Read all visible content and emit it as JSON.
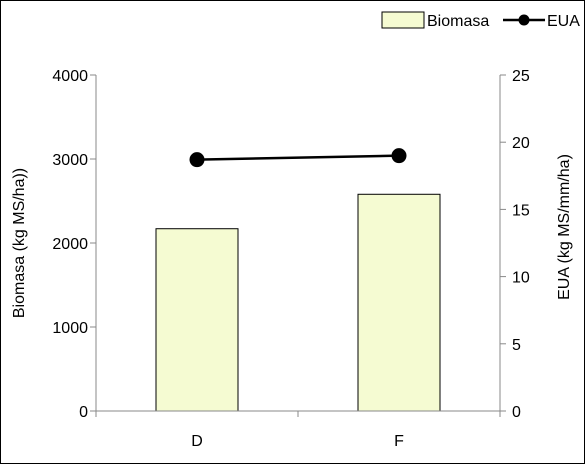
{
  "chart_data": {
    "type": "bar",
    "categories": [
      "D",
      "F"
    ],
    "series": [
      {
        "name": "Biomasa",
        "kind": "bar",
        "axis": "left",
        "values": [
          2170,
          2580
        ],
        "color": "#f5fbd2",
        "edge_color": "#000000"
      },
      {
        "name": "EUA",
        "kind": "line",
        "axis": "right",
        "values": [
          18.7,
          19.0
        ],
        "color": "#000000"
      }
    ],
    "ylabel": "Biomasa (kg MS/ha))",
    "y2label": "EUA (kg MS/mm/ha)",
    "ylim": [
      0,
      4000
    ],
    "yticks": [
      "0",
      "1000",
      "2000",
      "3000",
      "4000"
    ],
    "y2lim": [
      0,
      25
    ],
    "y2ticks": [
      "0",
      "5",
      "10",
      "15",
      "20",
      "25"
    ],
    "grid": false,
    "legend_position": "top-right"
  }
}
